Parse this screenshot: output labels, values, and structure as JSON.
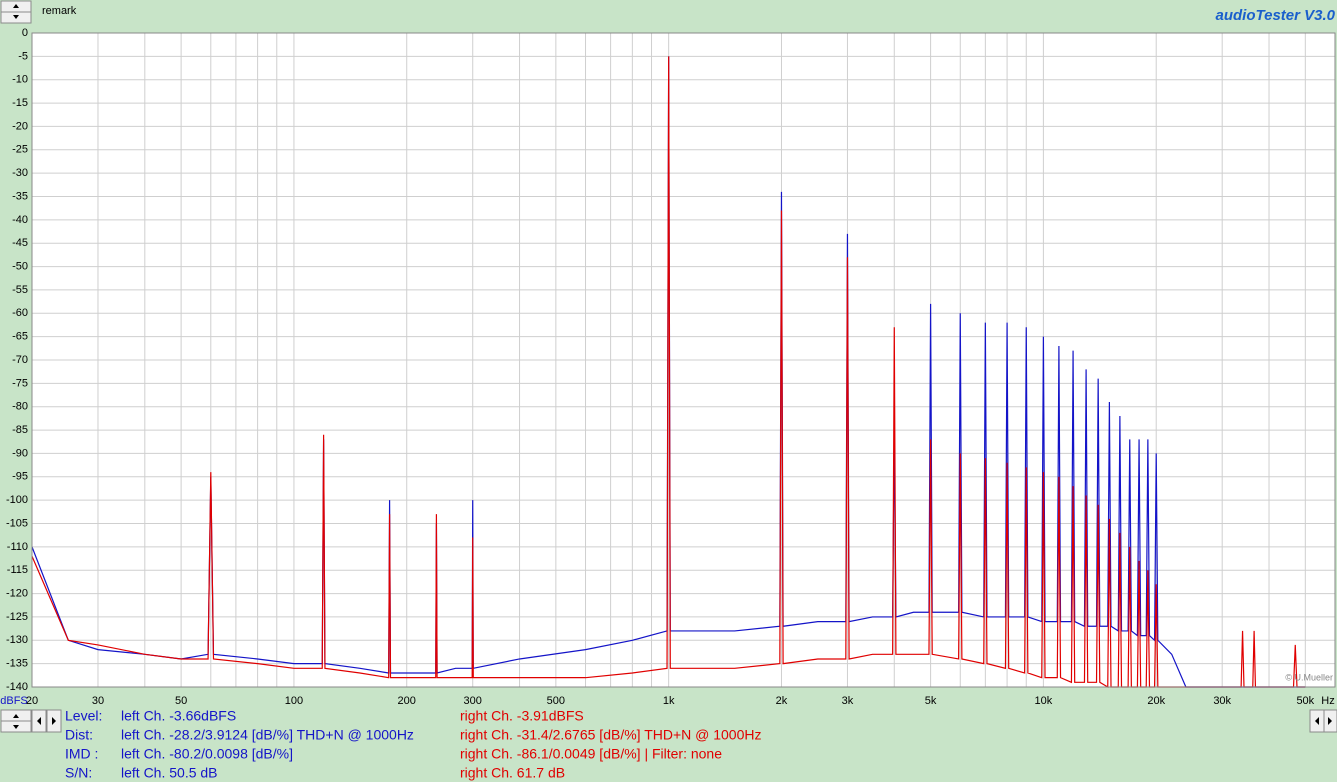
{
  "remark": "remark",
  "app_title": "audioTester  V3.0",
  "copyright": "© U.Mueller",
  "measurements": [
    {
      "label": "Level:",
      "left": "left Ch. -3.66dBFS",
      "right": "right Ch. -3.91dBFS"
    },
    {
      "label": "Dist:",
      "left": "left Ch. -28.2/3.9124 [dB/%] THD+N  @ 1000Hz",
      "right": "right Ch. -31.4/2.6765 [dB/%] THD+N  @ 1000Hz"
    },
    {
      "label": "IMD  :",
      "left": "left Ch. -80.2/0.0098 [dB/%]",
      "right": "right Ch. -86.1/0.0049 [dB/%] |   Filter: none"
    },
    {
      "label": "S/N:",
      "left": "left Ch. 50.5 dB",
      "right": "right Ch. 61.7 dB"
    }
  ],
  "chart_data": {
    "type": "line",
    "xlabel": "Hz",
    "ylabel": "dBFS",
    "xlog": true,
    "grid": true,
    "xlim": [
      20,
      60000
    ],
    "ylim": [
      -140,
      0
    ],
    "xticks": [
      20,
      30,
      50,
      100,
      200,
      300,
      500,
      {
        "value": 1000,
        "label": "1k"
      },
      {
        "value": 2000,
        "label": "2k"
      },
      {
        "value": 3000,
        "label": "3k"
      },
      {
        "value": 5000,
        "label": "5k"
      },
      {
        "value": 10000,
        "label": "10k"
      },
      {
        "value": 20000,
        "label": "20k"
      },
      {
        "value": 30000,
        "label": "30k"
      },
      {
        "value": 50000,
        "label": "50k"
      }
    ],
    "xgrid_minor": [
      40,
      60,
      70,
      80,
      90,
      400,
      600,
      700,
      800,
      900,
      4000,
      6000,
      7000,
      8000,
      9000,
      40000
    ],
    "yticks": [
      0,
      -5,
      -10,
      -15,
      -20,
      -25,
      -30,
      -35,
      -40,
      -45,
      -50,
      -55,
      -60,
      -65,
      -70,
      -75,
      -80,
      -85,
      -90,
      -95,
      -100,
      -105,
      -110,
      -115,
      -120,
      -125,
      -130,
      -135,
      -140
    ],
    "x": [
      20,
      25,
      30,
      40,
      50,
      59,
      60,
      61,
      80,
      100,
      119,
      120,
      121,
      150,
      179,
      180,
      181,
      210,
      239,
      240,
      241,
      270,
      299,
      300,
      301,
      400,
      600,
      800,
      990,
      1000,
      1010,
      1500,
      1980,
      2000,
      2020,
      2500,
      2970,
      3000,
      3030,
      3500,
      3960,
      4000,
      4040,
      4500,
      4950,
      5000,
      5050,
      5940,
      6000,
      6060,
      6930,
      7000,
      7070,
      7920,
      8000,
      8080,
      8910,
      9000,
      9090,
      9900,
      10000,
      10100,
      10890,
      11000,
      11110,
      11880,
      12000,
      12120,
      12870,
      13000,
      13130,
      13860,
      14000,
      14140,
      14850,
      15000,
      15150,
      15840,
      16000,
      16160,
      16830,
      17000,
      17170,
      17820,
      18000,
      18180,
      18810,
      19000,
      19190,
      19800,
      20000,
      20200,
      22000,
      24000,
      30000,
      33700,
      34000,
      34300,
      36200,
      36500,
      36800,
      46500,
      47000,
      47500,
      50000
    ],
    "series": [
      {
        "name": "left Ch.",
        "color": "#1414c8",
        "values": [
          -110,
          -130,
          -132,
          -133,
          -134,
          -133,
          -95,
          -133,
          -134,
          -135,
          -135,
          -87,
          -135,
          -136,
          -137,
          -100,
          -137,
          -137,
          -137,
          -105,
          -137,
          -136,
          -136,
          -100,
          -136,
          -134,
          -132,
          -130,
          -128,
          -5,
          -128,
          -128,
          -127,
          -34,
          -127,
          -126,
          -126,
          -43,
          -126,
          -125,
          -125,
          -85,
          -125,
          -124,
          -124,
          -58,
          -124,
          -124,
          -60,
          -124,
          -125,
          -62,
          -125,
          -125,
          -62,
          -125,
          -125,
          -63,
          -125,
          -126,
          -65,
          -126,
          -126,
          -67,
          -126,
          -126,
          -68,
          -126,
          -127,
          -72,
          -127,
          -127,
          -74,
          -127,
          -127,
          -79,
          -127,
          -128,
          -82,
          -128,
          -128,
          -87,
          -128,
          -129,
          -87,
          -129,
          -129,
          -87,
          -129,
          -130,
          -90,
          -130,
          -133,
          -140,
          -140,
          -140,
          -140,
          -140,
          -140,
          -140,
          -140,
          -140,
          -140,
          -140,
          -140
        ]
      },
      {
        "name": "right Ch.",
        "color": "#e00000",
        "values": [
          -112,
          -130,
          -131,
          -133,
          -134,
          -134,
          -94,
          -134,
          -135,
          -136,
          -136,
          -86,
          -136,
          -137,
          -138,
          -103,
          -138,
          -138,
          -138,
          -103,
          -138,
          -138,
          -138,
          -108,
          -138,
          -138,
          -138,
          -137,
          -136,
          -5,
          -136,
          -136,
          -135,
          -38,
          -135,
          -134,
          -134,
          -48,
          -134,
          -133,
          -133,
          -63,
          -133,
          -133,
          -133,
          -87,
          -133,
          -134,
          -90,
          -134,
          -135,
          -91,
          -135,
          -136,
          -92,
          -136,
          -137,
          -93,
          -137,
          -138,
          -94,
          -138,
          -138,
          -95,
          -138,
          -139,
          -97,
          -139,
          -139,
          -99,
          -139,
          -139,
          -101,
          -139,
          -140,
          -104,
          -140,
          -140,
          -107,
          -140,
          -140,
          -110,
          -140,
          -140,
          -113,
          -140,
          -140,
          -115,
          -140,
          -140,
          -118,
          -140,
          -140,
          -140,
          -140,
          -140,
          -128,
          -140,
          -140,
          -128,
          -140,
          -140,
          -131,
          -140,
          -140
        ]
      }
    ]
  }
}
